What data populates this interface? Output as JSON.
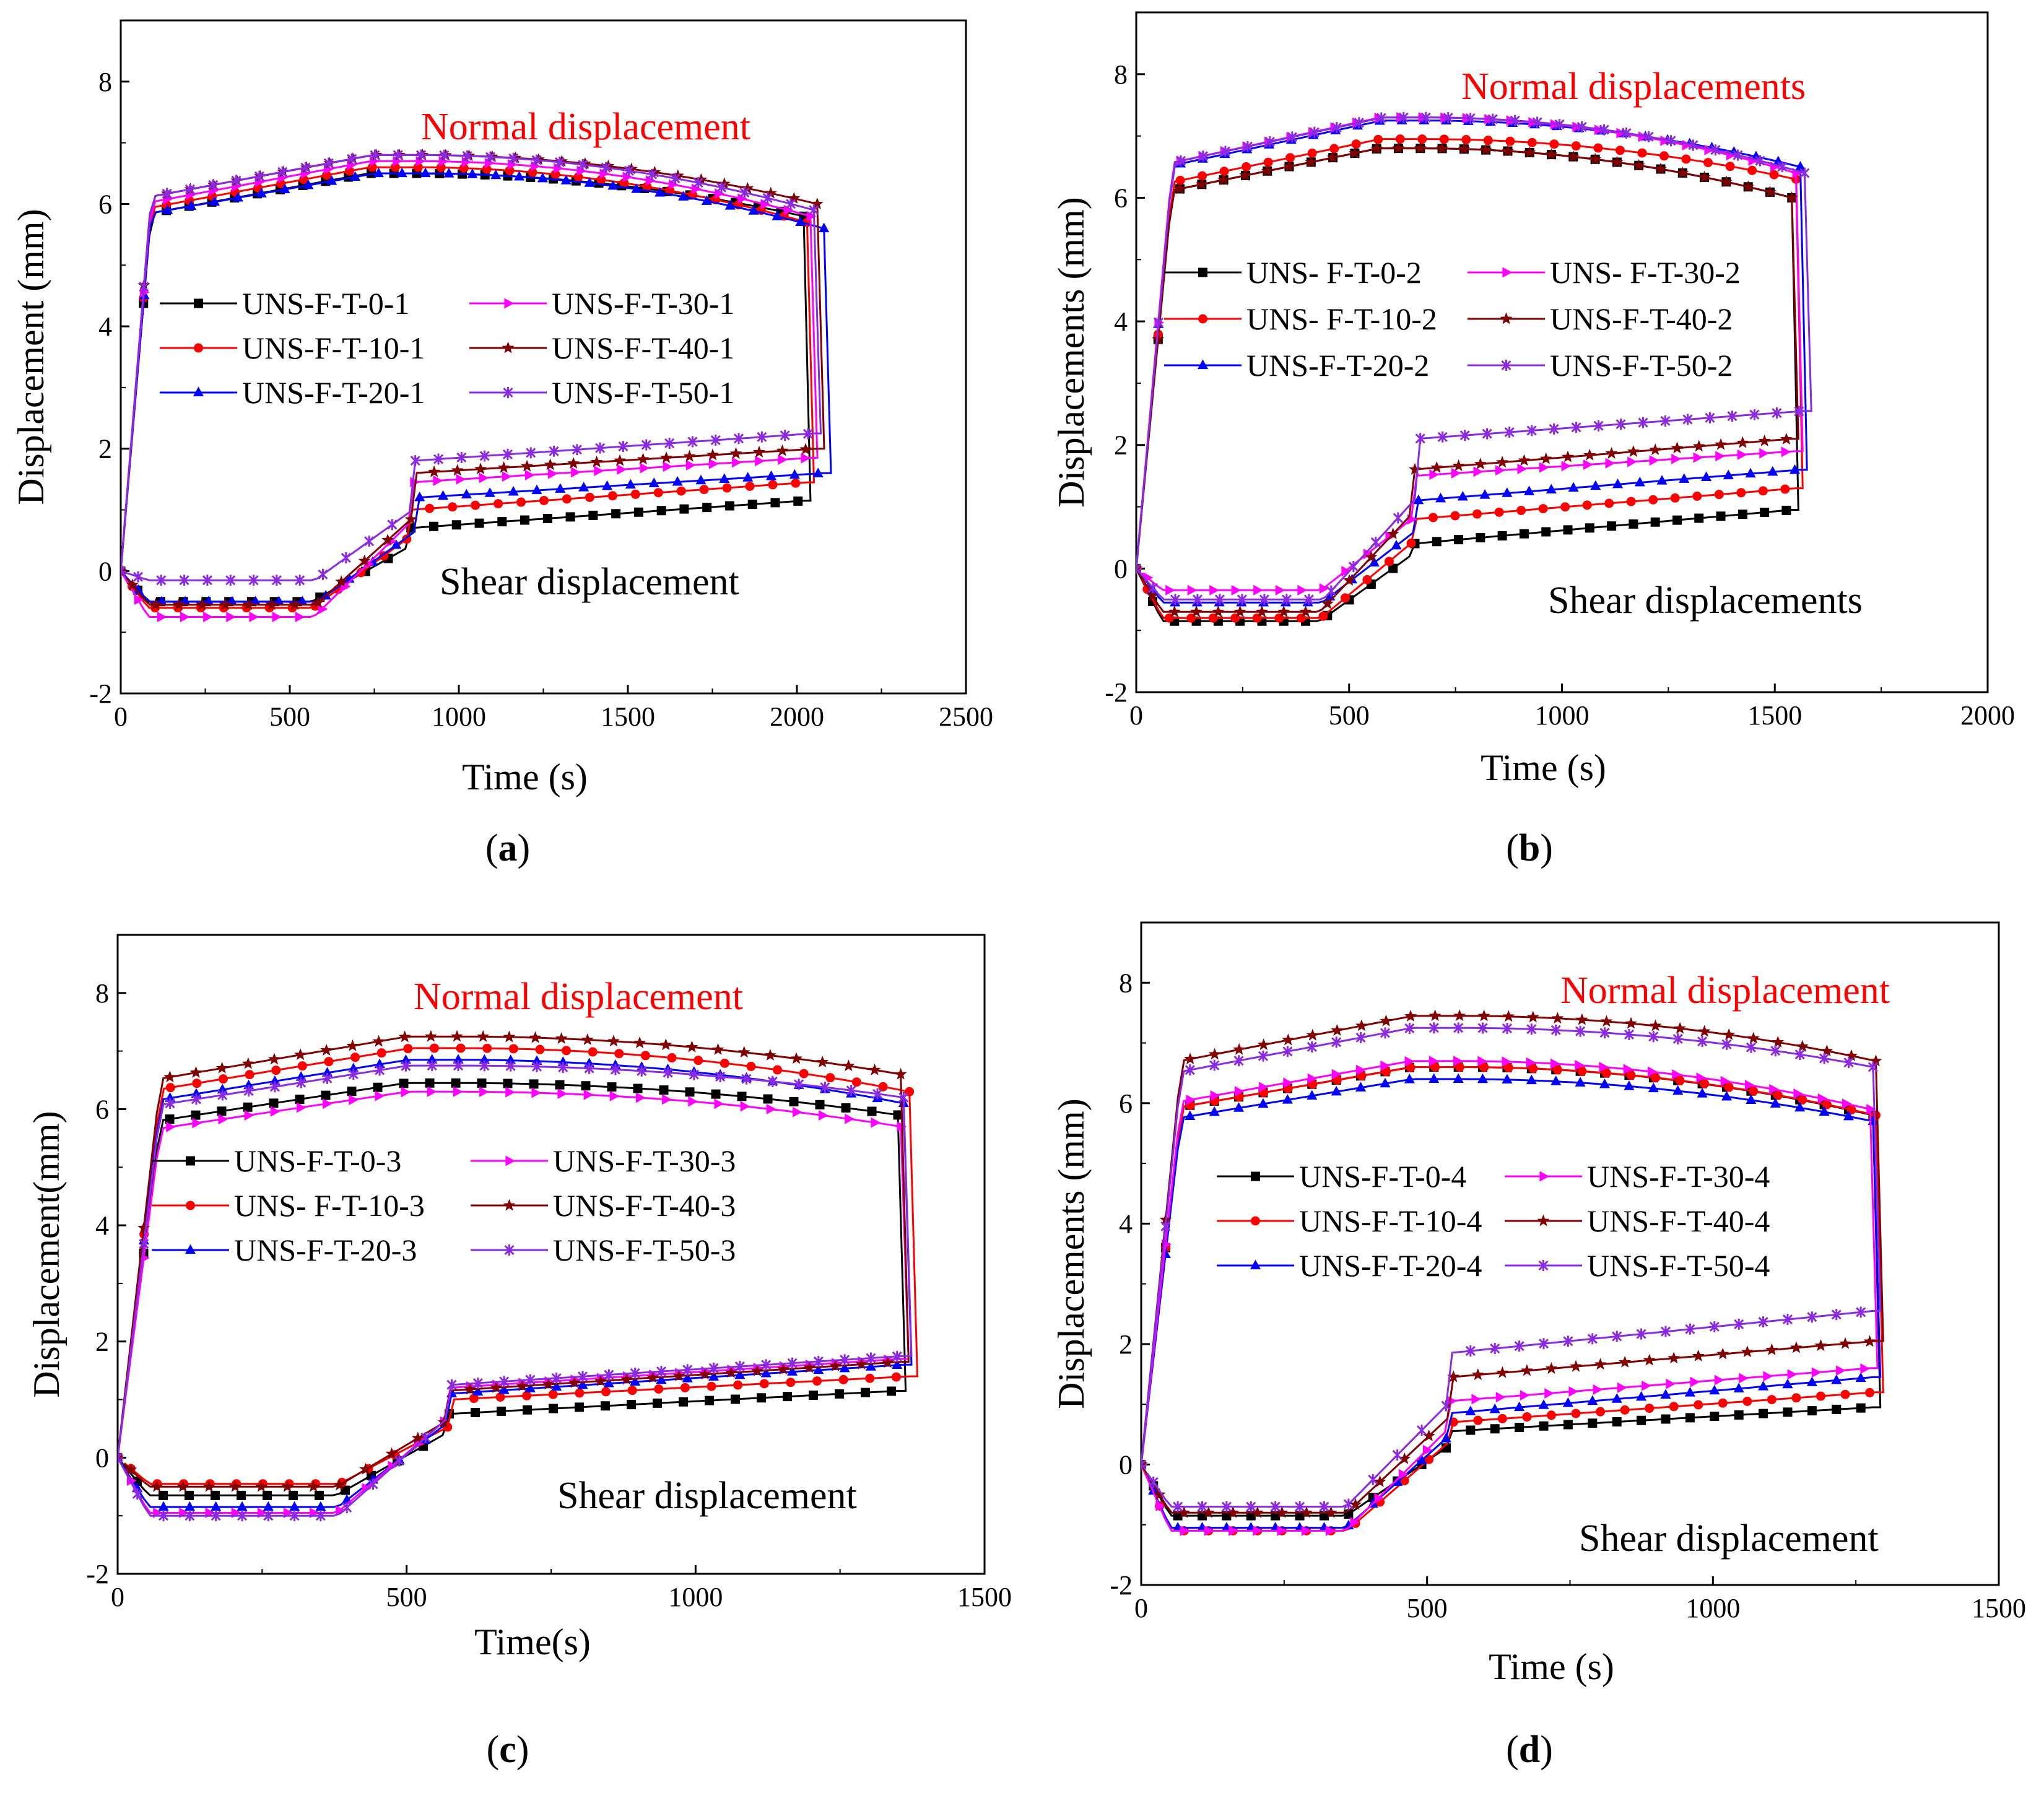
{
  "chart_data": [
    {
      "type": "line",
      "panel_label": "a",
      "xlabel": "Time (s)",
      "ylabel": "Displacement (mm)",
      "xlim": [
        0,
        2500
      ],
      "ylim": [
        -2,
        9
      ],
      "xticks": [
        0,
        500,
        1000,
        1500,
        2000,
        2500
      ],
      "yticks": [
        -2,
        0,
        2,
        4,
        6,
        8
      ],
      "x_tick_labels": [
        "0",
        "500",
        "1000",
        "1500",
        "2000",
        "2500"
      ],
      "y_tick_labels": [
        "-2",
        "0",
        "2",
        "4",
        "6",
        "8"
      ],
      "annotations": [
        {
          "text": "Normal displacement",
          "x": 1000,
          "y": 7.3,
          "color": "#ff0000"
        },
        {
          "text": "Shear displacement",
          "x": 1000,
          "y": -0.3,
          "color": "#000000"
        }
      ],
      "series": [
        {
          "name": "UNS-F-T-0-1",
          "color": "#000000",
          "marker": "square",
          "normal_peak": 6.5,
          "normal_end": 5.8,
          "shear_min": -0.5,
          "shear_plateau": 0.7,
          "shear_end": 1.15,
          "end_time": 2020
        },
        {
          "name": "UNS-F-T-10-1",
          "color": "#ff0000",
          "marker": "circle",
          "normal_peak": 6.6,
          "normal_end": 5.7,
          "shear_min": -0.6,
          "shear_plateau": 1.0,
          "shear_end": 1.45,
          "end_time": 2030
        },
        {
          "name": "UNS-F-T-20-1",
          "color": "#0000ff",
          "marker": "triangle",
          "normal_peak": 6.5,
          "normal_end": 5.6,
          "shear_min": -0.5,
          "shear_plateau": 1.2,
          "shear_end": 1.6,
          "end_time": 2080
        },
        {
          "name": "UNS-F-T-30-1",
          "color": "#ff00ff",
          "marker": "tri-right",
          "normal_peak": 6.7,
          "normal_end": 5.8,
          "shear_min": -0.75,
          "shear_plateau": 1.45,
          "shear_end": 1.85,
          "end_time": 2040
        },
        {
          "name": "UNS-F-T-40-1",
          "color": "#800000",
          "marker": "star",
          "normal_peak": 6.8,
          "normal_end": 6.0,
          "shear_min": -0.55,
          "shear_plateau": 1.6,
          "shear_end": 2.0,
          "end_time": 2060
        },
        {
          "name": "UNS-F-T-50-1",
          "color": "#8a2be2",
          "marker": "x",
          "normal_peak": 6.8,
          "normal_end": 5.9,
          "shear_min": -0.15,
          "shear_plateau": 1.8,
          "shear_end": 2.25,
          "end_time": 2050
        }
      ]
    },
    {
      "type": "line",
      "panel_label": "b",
      "xlabel": "Time (s)",
      "ylabel": "Displacements (mm)",
      "xlim": [
        0,
        2000
      ],
      "ylim": [
        -2,
        9
      ],
      "xticks": [
        0,
        500,
        1000,
        1500,
        2000
      ],
      "yticks": [
        -2,
        0,
        2,
        4,
        6,
        8
      ],
      "x_tick_labels": [
        "0",
        "500",
        "1000",
        "1500",
        "2000"
      ],
      "y_tick_labels": [
        "-2",
        "0",
        "2",
        "4",
        "6",
        "8"
      ],
      "annotations": [
        {
          "text": "Normal  displacements",
          "x": 780,
          "y": 7.6,
          "color": "#ff0000"
        },
        {
          "text": "Shear displacements",
          "x": 970,
          "y": -0.6,
          "color": "#000000"
        }
      ],
      "series": [
        {
          "name": "UNS- F-T-0-2",
          "color": "#000000",
          "marker": "square",
          "normal_peak": 6.8,
          "normal_end": 6.0,
          "shear_min": -0.85,
          "shear_plateau": 0.4,
          "shear_end": 0.95,
          "end_time": 1540
        },
        {
          "name": "UNS- F-T-10-2",
          "color": "#ff0000",
          "marker": "circle",
          "normal_peak": 6.95,
          "normal_end": 6.3,
          "shear_min": -0.8,
          "shear_plateau": 0.8,
          "shear_end": 1.3,
          "end_time": 1550
        },
        {
          "name": "UNS-F-T-20-2",
          "color": "#0000ff",
          "marker": "triangle",
          "normal_peak": 7.25,
          "normal_end": 6.5,
          "shear_min": -0.55,
          "shear_plateau": 1.1,
          "shear_end": 1.6,
          "end_time": 1560
        },
        {
          "name": "UNS- F-T-30-2",
          "color": "#ff00ff",
          "marker": "tri-right",
          "normal_peak": 7.3,
          "normal_end": 6.4,
          "shear_min": -0.35,
          "shear_plateau": 1.5,
          "shear_end": 1.9,
          "end_time": 1550
        },
        {
          "name": "UNS-F-T-40-2",
          "color": "#800000",
          "marker": "star",
          "normal_peak": 6.8,
          "normal_end": 6.0,
          "shear_min": -0.7,
          "shear_plateau": 1.6,
          "shear_end": 2.1,
          "end_time": 1540
        },
        {
          "name": "UNS-F-T-50-2",
          "color": "#8a2be2",
          "marker": "x",
          "normal_peak": 7.3,
          "normal_end": 6.4,
          "shear_min": -0.5,
          "shear_plateau": 2.1,
          "shear_end": 2.55,
          "end_time": 1570
        }
      ]
    },
    {
      "type": "line",
      "panel_label": "c",
      "xlabel": "Time(s)",
      "ylabel": "Displacement(mm)",
      "xlim": [
        0,
        1500
      ],
      "ylim": [
        -2,
        9
      ],
      "xticks": [
        0,
        500,
        1000,
        1500
      ],
      "yticks": [
        -2,
        0,
        2,
        4,
        6,
        8
      ],
      "x_tick_labels": [
        "0",
        "500",
        "1000",
        "1500"
      ],
      "y_tick_labels": [
        "-2",
        "0",
        "2",
        "4",
        "6",
        "8"
      ],
      "annotations": [
        {
          "text": "Normal displacement",
          "x": 520,
          "y": 7.6,
          "color": "#ff0000"
        },
        {
          "text": "Shear displacement",
          "x": 770,
          "y": -0.8,
          "color": "#000000"
        }
      ],
      "series": [
        {
          "name": "UNS-F-T-0-3",
          "color": "#000000",
          "marker": "square",
          "normal_peak": 6.45,
          "normal_end": 5.9,
          "shear_min": -0.65,
          "shear_plateau": 0.75,
          "shear_end": 1.15,
          "end_time": 1350
        },
        {
          "name": "UNS- F-T-10-3",
          "color": "#ff0000",
          "marker": "circle",
          "normal_peak": 7.05,
          "normal_end": 6.3,
          "shear_min": -0.45,
          "shear_plateau": 1.0,
          "shear_end": 1.4,
          "end_time": 1370
        },
        {
          "name": "UNS-F-T-20-3",
          "color": "#0000ff",
          "marker": "triangle",
          "normal_peak": 6.85,
          "normal_end": 6.1,
          "shear_min": -0.85,
          "shear_plateau": 1.1,
          "shear_end": 1.6,
          "end_time": 1360
        },
        {
          "name": "UNS-F-T-30-3",
          "color": "#ff00ff",
          "marker": "tri-right",
          "normal_peak": 6.3,
          "normal_end": 5.7,
          "shear_min": -0.95,
          "shear_plateau": 1.2,
          "shear_end": 1.7,
          "end_time": 1355
        },
        {
          "name": "UNS-F-T-40-3",
          "color": "#800000",
          "marker": "star",
          "normal_peak": 7.25,
          "normal_end": 6.6,
          "shear_min": -0.5,
          "shear_plateau": 1.15,
          "shear_end": 1.65,
          "end_time": 1355
        },
        {
          "name": "UNS-F-T-50-3",
          "color": "#8a2be2",
          "marker": "x",
          "normal_peak": 6.75,
          "normal_end": 6.2,
          "shear_min": -1.0,
          "shear_plateau": 1.25,
          "shear_end": 1.75,
          "end_time": 1360
        }
      ]
    },
    {
      "type": "line",
      "panel_label": "d",
      "xlabel": "Time (s)",
      "ylabel": "Displacements (mm)",
      "xlim": [
        0,
        1500
      ],
      "ylim": [
        -2,
        9
      ],
      "xticks": [
        0,
        500,
        1000,
        1500
      ],
      "yticks": [
        -2,
        0,
        2,
        4,
        6,
        8
      ],
      "x_tick_labels": [
        "0",
        "500",
        "1000",
        "1500"
      ],
      "y_tick_labels": [
        "-2",
        "0",
        "2",
        "4",
        "6",
        "8"
      ],
      "annotations": [
        {
          "text": "Normal displacement",
          "x": 740,
          "y": 7.6,
          "color": "#ff0000"
        },
        {
          "text": "Shear displacement",
          "x": 770,
          "y": -1.3,
          "color": "#000000"
        }
      ],
      "series": [
        {
          "name": "UNS-F-T-0-4",
          "color": "#000000",
          "marker": "square",
          "normal_peak": 6.6,
          "normal_end": 5.8,
          "shear_min": -0.85,
          "shear_plateau": 0.55,
          "shear_end": 0.95,
          "end_time": 1280
        },
        {
          "name": "UNS-F-T-10-4",
          "color": "#ff0000",
          "marker": "circle",
          "normal_peak": 6.6,
          "normal_end": 5.8,
          "shear_min": -1.1,
          "shear_plateau": 0.7,
          "shear_end": 1.2,
          "end_time": 1285
        },
        {
          "name": "UNS-F-T-20-4",
          "color": "#0000ff",
          "marker": "triangle",
          "normal_peak": 6.4,
          "normal_end": 5.7,
          "shear_min": -1.05,
          "shear_plateau": 0.85,
          "shear_end": 1.45,
          "end_time": 1280
        },
        {
          "name": "UNS-F-T-30-4",
          "color": "#ff00ff",
          "marker": "tri-right",
          "normal_peak": 6.7,
          "normal_end": 5.9,
          "shear_min": -1.1,
          "shear_plateau": 1.05,
          "shear_end": 1.6,
          "end_time": 1275
        },
        {
          "name": "UNS-F-T-40-4",
          "color": "#800000",
          "marker": "star",
          "normal_peak": 7.45,
          "normal_end": 6.7,
          "shear_min": -0.8,
          "shear_plateau": 1.45,
          "shear_end": 2.05,
          "end_time": 1285
        },
        {
          "name": "UNS-F-T-50-4",
          "color": "#8a2be2",
          "marker": "x",
          "normal_peak": 7.25,
          "normal_end": 6.6,
          "shear_min": -0.7,
          "shear_plateau": 1.85,
          "shear_end": 2.55,
          "end_time": 1280
        }
      ]
    }
  ]
}
